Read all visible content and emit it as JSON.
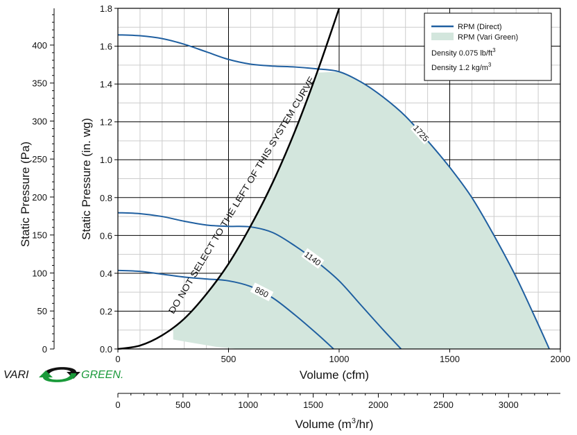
{
  "logo": {
    "vari": "VARI",
    "green": "GREEN.",
    "colors": {
      "vari": "#111111",
      "green": "#1a9a3a"
    }
  },
  "colors": {
    "rpm_direct": "#1f5fa0",
    "rpm_vari_green": "#d3e6dd",
    "system_curve": "#000000",
    "grid_minor": "#cccccc",
    "grid_major": "#000000"
  },
  "legend": {
    "direct": "RPM (Direct)",
    "vari_green": "RPM (Vari Green)",
    "density_imperial_prefix": "Density 0.075 lb/ft",
    "density_metric_prefix": "Density 1.2 kg/m",
    "superscript": "3"
  },
  "chart_data": {
    "type": "line",
    "xlabel": "Volume (cfm)",
    "ylabel": "Static Pressure (in. wg)",
    "xlim": [
      0,
      2000
    ],
    "ylim": [
      0,
      1.8
    ],
    "x_ticks": [
      "0",
      "500",
      "1000",
      "1500",
      "2000"
    ],
    "y_ticks": [
      "0.0",
      "0.2",
      "0.4",
      "0.6",
      "0.8",
      "1.0",
      "1.2",
      "1.4",
      "1.6",
      "1.8"
    ],
    "secondary_y": {
      "label": "Static Pressure (Pa)",
      "ticks": [
        "0",
        "50",
        "100",
        "150",
        "200",
        "250",
        "300",
        "350",
        "400"
      ],
      "tick_values": [
        0,
        50,
        100,
        150,
        200,
        250,
        300,
        350,
        400
      ]
    },
    "secondary_x": {
      "label_prefix": "Volume (m",
      "label_sup": "3",
      "label_suffix": "/hr)",
      "ticks": [
        "0",
        "500",
        "1000",
        "1500",
        "2000",
        "2500",
        "3000"
      ],
      "tick_values": [
        0,
        500,
        1000,
        1500,
        2000,
        2500,
        3000
      ]
    },
    "series": [
      {
        "name": "1725",
        "x": [
          0,
          100,
          200,
          300,
          400,
          500,
          600,
          700,
          800,
          900,
          1000,
          1100,
          1200,
          1300,
          1400,
          1500,
          1600,
          1700,
          1800,
          1900,
          1950
        ],
        "y": [
          1.66,
          1.655,
          1.64,
          1.61,
          1.57,
          1.53,
          1.505,
          1.495,
          1.49,
          1.48,
          1.465,
          1.41,
          1.33,
          1.23,
          1.1,
          0.96,
          0.8,
          0.6,
          0.38,
          0.13,
          0.0
        ]
      },
      {
        "name": "1140",
        "x": [
          0,
          100,
          200,
          300,
          400,
          500,
          600,
          700,
          800,
          900,
          1000,
          1100,
          1200,
          1280
        ],
        "y": [
          0.72,
          0.715,
          0.7,
          0.675,
          0.655,
          0.648,
          0.645,
          0.615,
          0.545,
          0.46,
          0.36,
          0.23,
          0.1,
          0.0
        ]
      },
      {
        "name": "860",
        "x": [
          0,
          100,
          200,
          300,
          400,
          500,
          600,
          700,
          800,
          900,
          975
        ],
        "y": [
          0.415,
          0.41,
          0.395,
          0.38,
          0.37,
          0.36,
          0.33,
          0.27,
          0.18,
          0.08,
          0.0
        ]
      }
    ],
    "system_curve": {
      "label": "DO NOT SELECT TO THE LEFT OF THIS SYSTEM CURVE",
      "x": [
        0,
        100,
        200,
        300,
        400,
        500,
        600,
        700,
        800,
        900,
        1000
      ],
      "y": [
        0.0,
        0.018,
        0.072,
        0.16,
        0.29,
        0.45,
        0.65,
        0.88,
        1.15,
        1.46,
        1.8
      ]
    },
    "vari_green_region": {
      "upper_x": [
        250,
        300,
        400,
        500,
        600,
        700,
        800,
        900,
        1000,
        1100,
        1200,
        1300,
        1400,
        1500,
        1600,
        1700,
        1800,
        1900,
        1950
      ],
      "upper_y": [
        0.115,
        0.16,
        0.29,
        0.45,
        0.65,
        0.88,
        1.15,
        1.46,
        1.465,
        1.41,
        1.33,
        1.23,
        1.1,
        0.96,
        0.8,
        0.6,
        0.38,
        0.13,
        0.0
      ],
      "lower_x": [
        250,
        350,
        450,
        550
      ],
      "lower_y": [
        0.05,
        0.03,
        0.01,
        0.0
      ]
    },
    "legend_position": "top-right",
    "grid": true
  }
}
